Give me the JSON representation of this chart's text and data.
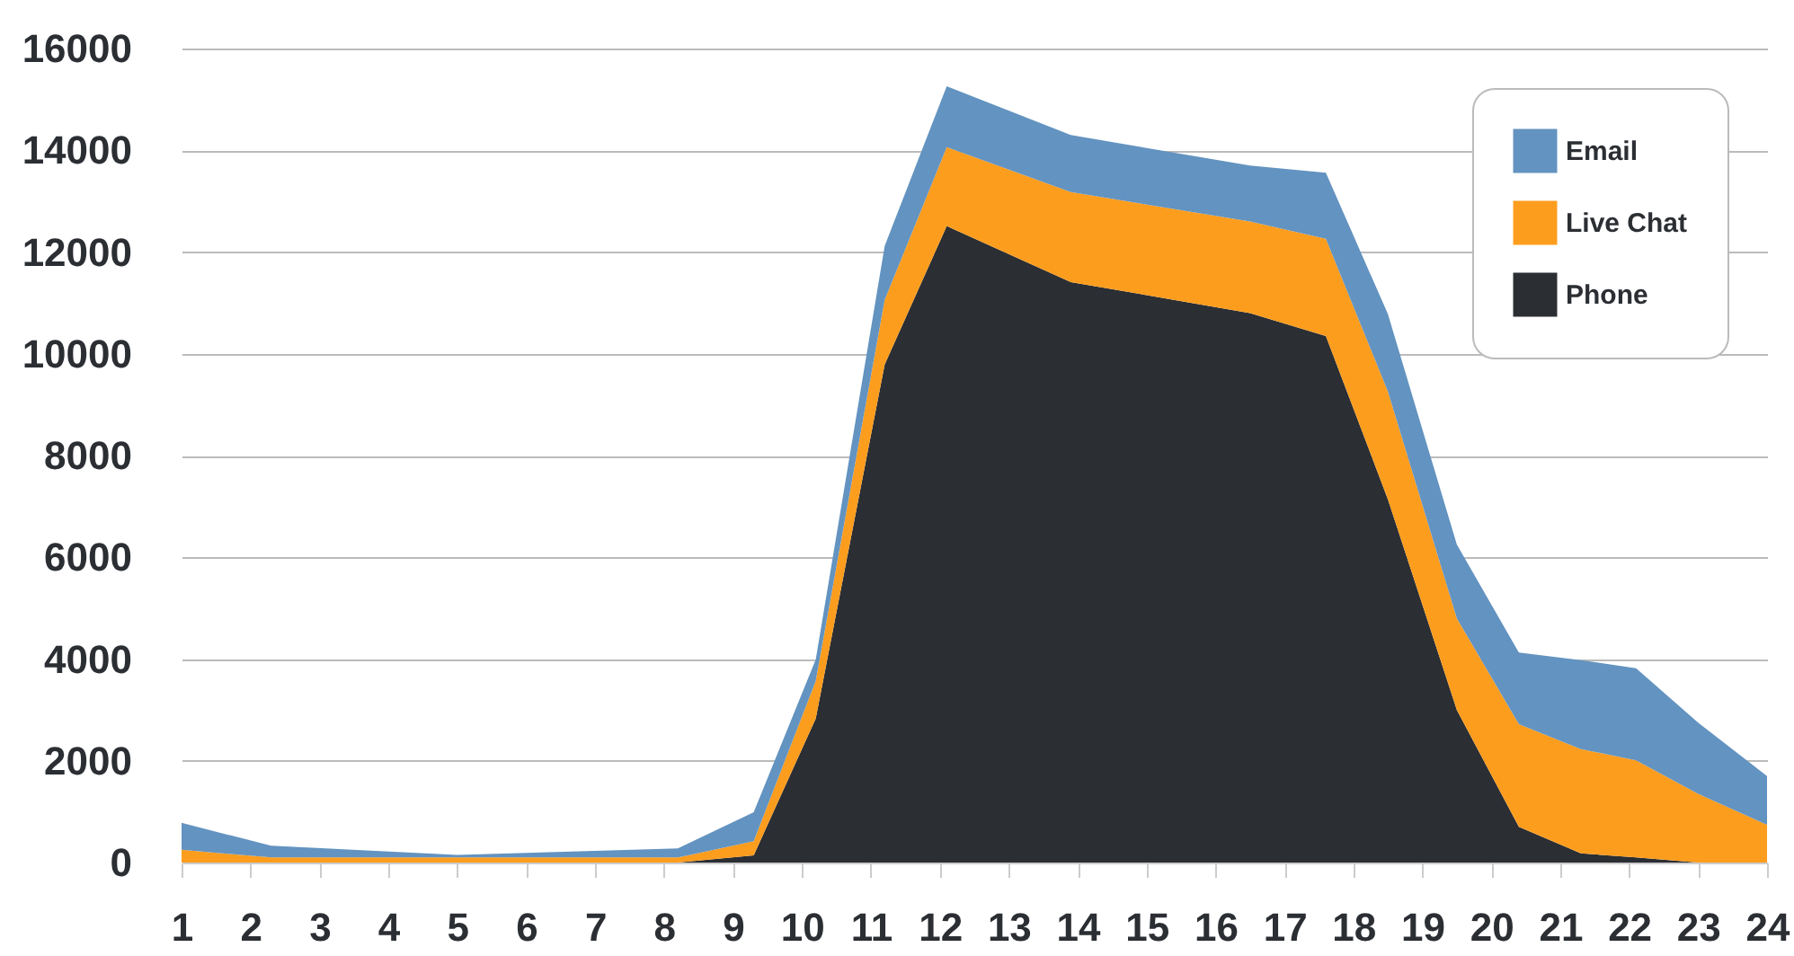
{
  "chart_data": {
    "type": "area",
    "stacked": true,
    "x": [
      1,
      2.3,
      5,
      8.2,
      9.3,
      10.2,
      11.2,
      12.1,
      13.9,
      16.5,
      17.6,
      18.5,
      19.5,
      20.4,
      21.3,
      22.1,
      23,
      24
    ],
    "series": [
      {
        "name": "Phone",
        "color": "#2b2e33",
        "values": [
          0,
          0,
          0,
          0,
          140,
          2830,
          9790,
          12510,
          11410,
          10800,
          10350,
          7140,
          3000,
          700,
          180,
          100,
          0,
          0
        ]
      },
      {
        "name": "Live Chat",
        "color": "#fd9d1e",
        "values": [
          250,
          100,
          100,
          100,
          280,
          740,
          1270,
          1550,
          1770,
          1800,
          1910,
          2120,
          1800,
          2020,
          2050,
          1910,
          1350,
          740
        ]
      },
      {
        "name": "Email",
        "color": "#6393c0",
        "values": [
          530,
          230,
          50,
          180,
          570,
          420,
          1060,
          1200,
          1120,
          1100,
          1300,
          1520,
          1450,
          1410,
          1750,
          1810,
          1400,
          960
        ]
      }
    ],
    "xlim": [
      1,
      24
    ],
    "xticks": [
      1,
      2,
      3,
      4,
      5,
      6,
      7,
      8,
      9,
      10,
      11,
      12,
      13,
      14,
      15,
      16,
      17,
      18,
      19,
      20,
      21,
      22,
      23,
      24
    ],
    "ylim": [
      0,
      16000
    ],
    "yticks": [
      0,
      2000,
      4000,
      6000,
      8000,
      10000,
      12000,
      14000,
      16000
    ],
    "grid": "y",
    "legend": "top right"
  }
}
